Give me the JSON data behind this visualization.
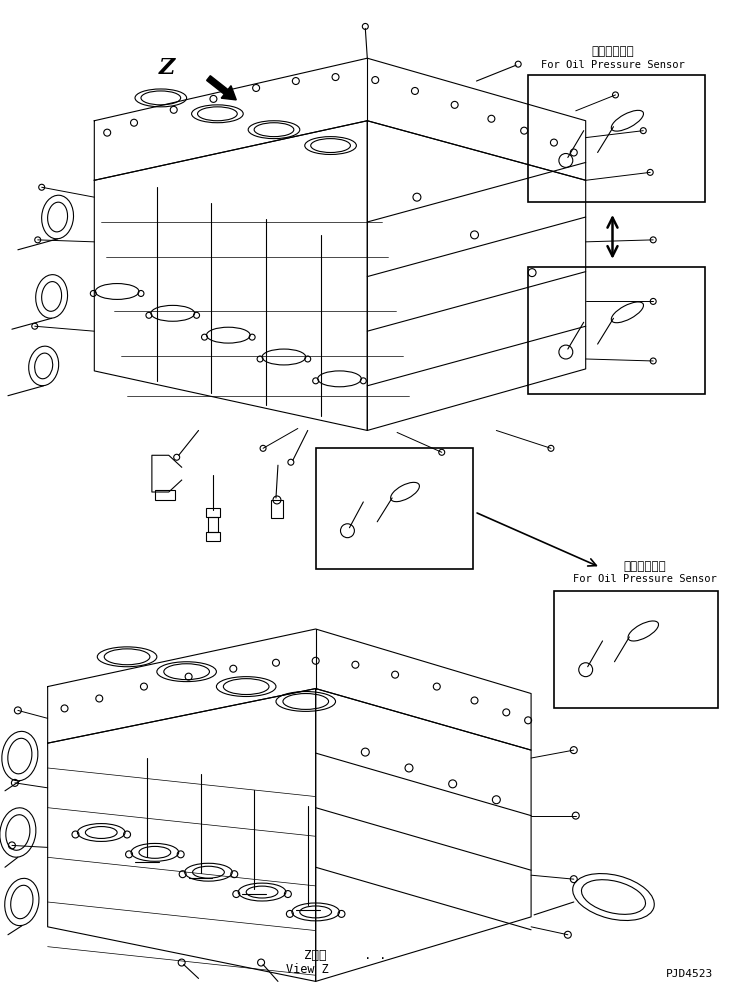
{
  "bg_color": "#ffffff",
  "line_color": "#000000",
  "title_jp_upper": "油圧センサ用",
  "title_en_upper": "For Oil Pressure Sensor",
  "title_jp_lower": "油圧センサ用",
  "title_en_lower": "For Oil Pressure Sensor",
  "label_z": "Z",
  "view_z_jp": "Z　視",
  "view_z_en": "View Z",
  "view_z_dots": ". .",
  "part_no": "PJD4523",
  "figsize": [
    7.34,
    9.86
  ],
  "dpi": 100
}
